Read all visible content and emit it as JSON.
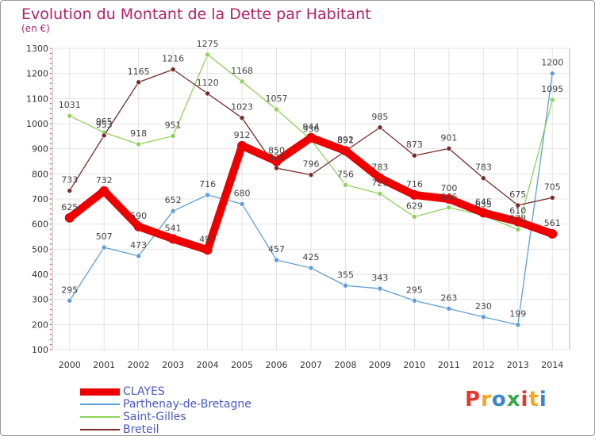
{
  "title": "Evolution du Montant de la Dette par Habitant",
  "subtitle": "(en €)",
  "watermark": {
    "text": "Proxiti",
    "letters": [
      "P",
      "r",
      "o",
      "x",
      "i",
      "t",
      "i"
    ],
    "colors": [
      "#e23a2e",
      "#f5a623",
      "#3b86c8",
      "#3aa84b",
      "#e23a2e",
      "#f5a623",
      "#3b86c8"
    ]
  },
  "chart_data": {
    "type": "line",
    "title": "Evolution du Montant de la Dette par Habitant",
    "subtitle": "(en €)",
    "xlabel": "",
    "ylabel": "",
    "x": [
      "2000",
      "2001",
      "2002",
      "2003",
      "2004",
      "2005",
      "2006",
      "2007",
      "2008",
      "2009",
      "2010",
      "2011",
      "2012",
      "2013",
      "2014"
    ],
    "ylim": [
      100,
      1300
    ],
    "yticks": [
      "100",
      "200",
      "300",
      "400",
      "500",
      "600",
      "700",
      "800",
      "900",
      "1000",
      "1100",
      "1200",
      "1300"
    ],
    "grid": true,
    "legend_position": "bottom-left",
    "series": [
      {
        "name": "CLAYES",
        "color": "#ee0000",
        "values": [
          625,
          732,
          590,
          541,
          497,
          912,
          850,
          944,
          892,
          783,
          716,
          700,
          645,
          610,
          561
        ],
        "labels": [
          "625",
          "732",
          "590",
          "541",
          "497",
          "912",
          "850",
          "944",
          "892",
          "783",
          "716",
          "700",
          "645",
          "610",
          "561"
        ]
      },
      {
        "name": "Parthenay-de-Bretagne",
        "color": "#5f9ed6",
        "values": [
          295,
          507,
          473,
          652,
          716,
          680,
          457,
          425,
          355,
          343,
          295,
          263,
          230,
          199,
          1200
        ],
        "labels": [
          "295",
          "507",
          "473",
          "652",
          "716",
          "680",
          "457",
          "425",
          "355",
          "343",
          "295",
          "263",
          "230",
          "199",
          "1200"
        ]
      },
      {
        "name": "Saint-Gilles",
        "color": "#8dd35a",
        "values": [
          1031,
          965,
          918,
          951,
          1275,
          1168,
          1057,
          936,
          756,
          721,
          629,
          666,
          635,
          578,
          1095
        ],
        "labels": [
          "1031",
          "965",
          "918",
          "951",
          "1275",
          "1168",
          "1057",
          "936",
          "756",
          "721",
          "629",
          "666",
          "635",
          "578",
          "1095"
        ]
      },
      {
        "name": "Breteil",
        "color": "#7a2a2a",
        "values": [
          733,
          953,
          1165,
          1216,
          1120,
          1023,
          823,
          796,
          891,
          985,
          873,
          901,
          783,
          675,
          705
        ],
        "labels": [
          "733",
          "953",
          "1165",
          "1216",
          "1120",
          "1023",
          "823",
          "796",
          "891",
          "985",
          "873",
          "901",
          "783",
          "675",
          "705"
        ]
      }
    ]
  }
}
